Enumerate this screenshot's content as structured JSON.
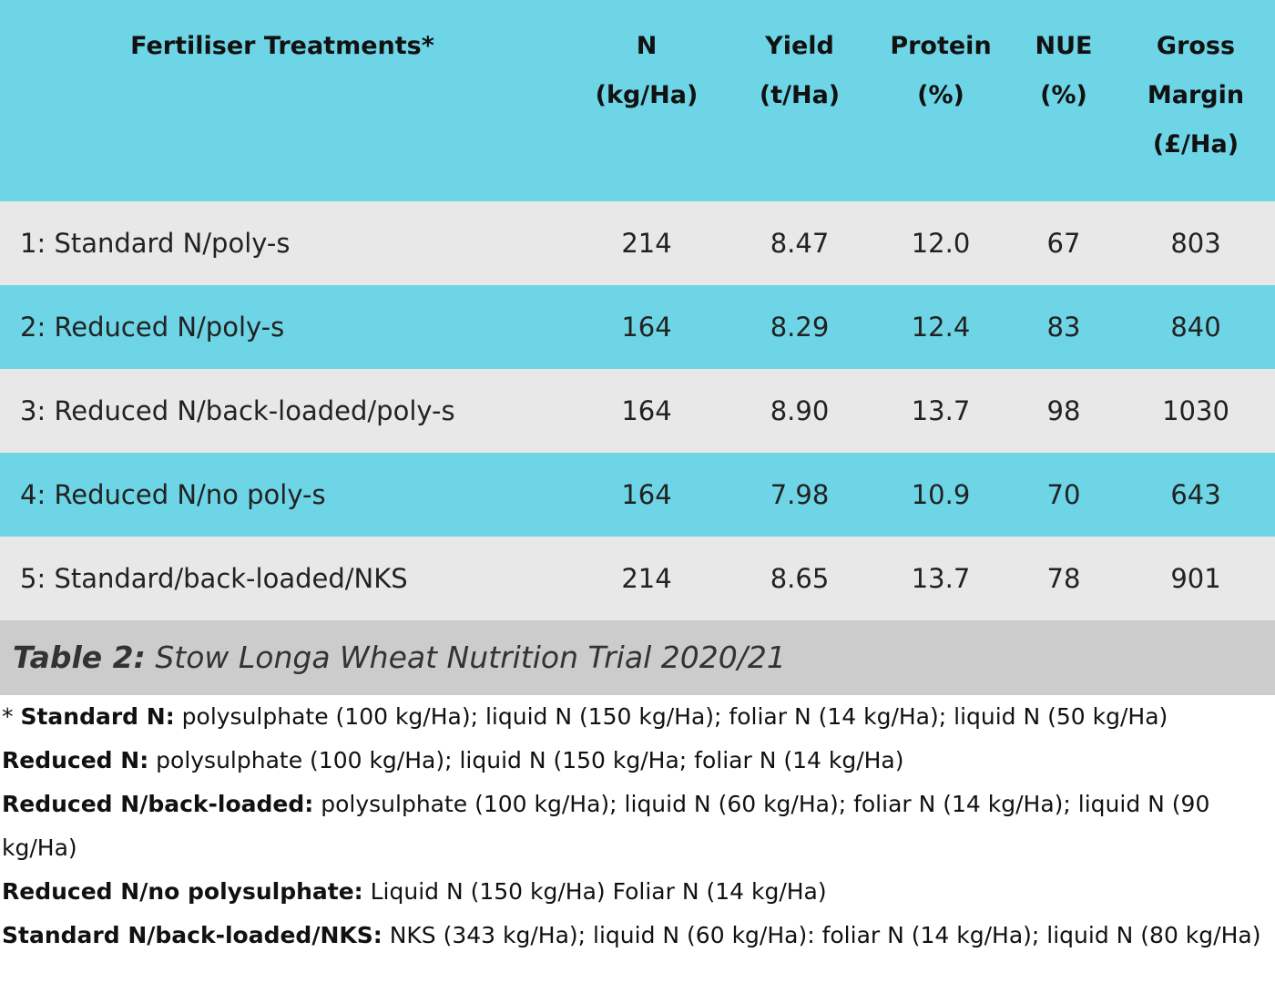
{
  "table": {
    "header": [
      [
        "Fertiliser Treatments*"
      ],
      [
        "N",
        "(kg/Ha)"
      ],
      [
        "Yield",
        "(t/Ha)"
      ],
      [
        "Protein",
        "(%)"
      ],
      [
        "NUE",
        "(%)"
      ],
      [
        "Gross",
        "Margin",
        "(£/Ha)"
      ]
    ],
    "rows": [
      [
        "1: Standard N/poly-s",
        "214",
        "8.47",
        "12.0",
        "67",
        "803"
      ],
      [
        "2: Reduced N/poly-s",
        "164",
        "8.29",
        "12.4",
        "83",
        "840"
      ],
      [
        "3: Reduced N/back-loaded/poly-s",
        "164",
        "8.90",
        "13.7",
        "98",
        "1030"
      ],
      [
        "4: Reduced N/no poly-s",
        "164",
        "7.98",
        "10.9",
        "70",
        "643"
      ],
      [
        "5: Standard/back-loaded/NKS",
        "214",
        "8.65",
        "13.7",
        "78",
        "901"
      ]
    ],
    "caption": {
      "label": "Table 2:",
      "text": "Stow Longa Wheat Nutrition Trial 2020/21"
    }
  },
  "notes": [
    {
      "marker": "*",
      "label": "Standard N:",
      "text": "polysulphate (100 kg/Ha); liquid N (150 kg/Ha); foliar N (14 kg/Ha); liquid N (50 kg/Ha)"
    },
    {
      "label": "Reduced N:",
      "text": "polysulphate (100 kg/Ha); liquid N (150 kg/Ha; foliar N (14 kg/Ha)"
    },
    {
      "label": "Reduced N/back-loaded:",
      "text": "polysulphate (100 kg/Ha); liquid N (60 kg/Ha); foliar N (14 kg/Ha); liquid N (90 kg/Ha)"
    },
    {
      "label": "Reduced N/no polysulphate:",
      "text": "Liquid N (150 kg/Ha) Foliar N (14 kg/Ha)"
    },
    {
      "label": "Standard N/back-loaded/NKS:",
      "text": "NKS (343 kg/Ha); liquid N (60 kg/Ha): foliar N (14 kg/Ha); liquid N (80 kg/Ha)"
    }
  ]
}
